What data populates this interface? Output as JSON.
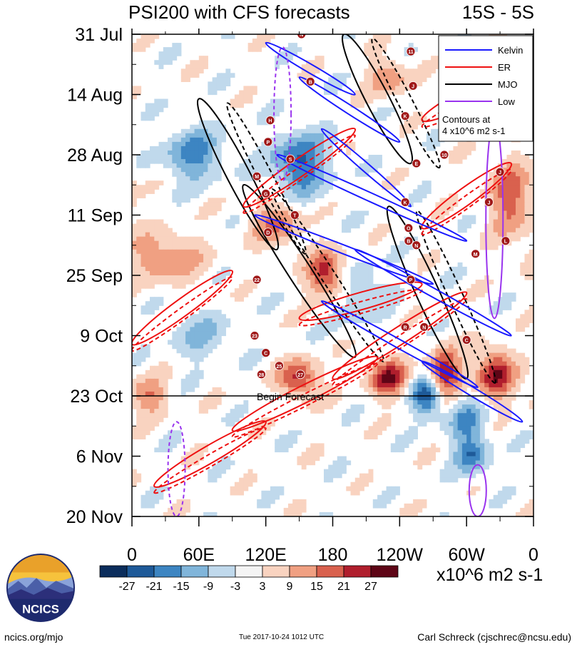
{
  "title_left": "PSI200 with CFS forecasts",
  "title_right": "15S - 5S",
  "logo_text": "NCICS",
  "footer": {
    "left": "ncics.org/mjo",
    "center": "Tue 2017-10-24 1012 UTC",
    "right": "Carl Schreck (cjschrec@ncsu.edu)"
  },
  "units": "x10^6 m2 s-1",
  "annotation": "Begin Forecast",
  "legend": {
    "items": [
      {
        "name": "Kelvin",
        "color": "#1a1aff"
      },
      {
        "name": "ER",
        "color": "#ee1111"
      },
      {
        "name": "MJO",
        "color": "#000000"
      },
      {
        "name": "Low",
        "color": "#9933ee"
      }
    ],
    "note": [
      "Contours at",
      "4 x10^6 m2 s-1"
    ]
  },
  "colorbar": {
    "labels": [
      "-27",
      "-21",
      "-15",
      "-9",
      "-3",
      "3",
      "9",
      "15",
      "21",
      "27"
    ],
    "colors": [
      "#0b2d5c",
      "#1e5a99",
      "#3d85c2",
      "#80b5da",
      "#c0d9ec",
      "#f4f4f4",
      "#f9d3c0",
      "#f0a082",
      "#d9614e",
      "#b01e2d",
      "#5e0516"
    ]
  },
  "chart_data": {
    "type": "heatmap",
    "title": "PSI200 with CFS forecasts",
    "subtitle": "15S - 5S",
    "x_ticks": [
      "0",
      "60E",
      "120E",
      "180",
      "120W",
      "60W",
      "0"
    ],
    "x_range_deg_east": [
      0,
      360
    ],
    "y_ticks": [
      "31 Jul",
      "14 Aug",
      "28 Aug",
      "11 Sep",
      "25 Sep",
      "9 Oct",
      "23 Oct",
      "6 Nov",
      "20 Nov"
    ],
    "time_range": [
      "2017-07-31",
      "2017-11-20"
    ],
    "forecast_start": "23 Oct",
    "contour_interval": "4 x10^6 m2 s-1",
    "colorbar_units": "x10^6 m2 s-1",
    "anomaly_blobs": [
      {
        "lon": 55,
        "day": 28,
        "amp": -18,
        "slon": 18,
        "sday": 4
      },
      {
        "lon": 150,
        "day": 30,
        "amp": -22,
        "slon": 18,
        "sday": 5
      },
      {
        "lon": 175,
        "day": 56,
        "amp": 27,
        "slon": 12,
        "sday": 4
      },
      {
        "lon": 130,
        "day": 44,
        "amp": 15,
        "slon": 16,
        "sday": 4
      },
      {
        "lon": 30,
        "day": 52,
        "amp": 15,
        "slon": 22,
        "sday": 4
      },
      {
        "lon": 150,
        "day": 80,
        "amp": 24,
        "slon": 12,
        "sday": 3
      },
      {
        "lon": 230,
        "day": 80,
        "amp": 27,
        "slon": 12,
        "sday": 3
      },
      {
        "lon": 265,
        "day": 84,
        "amp": -27,
        "slon": 10,
        "sday": 3
      },
      {
        "lon": 280,
        "day": 79,
        "amp": 27,
        "slon": 10,
        "sday": 4
      },
      {
        "lon": 325,
        "day": 79,
        "amp": 27,
        "slon": 12,
        "sday": 4
      },
      {
        "lon": 300,
        "day": 90,
        "amp": -15,
        "slon": 12,
        "sday": 4
      },
      {
        "lon": 305,
        "day": 98,
        "amp": -18,
        "slon": 10,
        "sday": 3
      },
      {
        "lon": 15,
        "day": 84,
        "amp": 15,
        "slon": 12,
        "sday": 3
      },
      {
        "lon": 340,
        "day": 38,
        "amp": 18,
        "slon": 14,
        "sday": 6
      },
      {
        "lon": 230,
        "day": 10,
        "amp": 15,
        "slon": 12,
        "sday": 3
      },
      {
        "lon": 60,
        "day": 70,
        "amp": -10,
        "slon": 18,
        "sday": 4
      },
      {
        "lon": 200,
        "day": 60,
        "amp": -10,
        "slon": 20,
        "sday": 5
      }
    ],
    "kelvin_waves": [
      {
        "start_lon": 120,
        "start_day": 2,
        "end_lon": 200,
        "end_day": 14
      },
      {
        "start_lon": 150,
        "start_day": 10,
        "end_lon": 240,
        "end_day": 25
      },
      {
        "start_lon": 170,
        "start_day": 22,
        "end_lon": 250,
        "end_day": 40
      },
      {
        "start_lon": 110,
        "start_day": 42,
        "end_lon": 270,
        "end_day": 58
      },
      {
        "start_lon": 130,
        "start_day": 28,
        "end_lon": 300,
        "end_day": 48
      },
      {
        "start_lon": 200,
        "start_day": 50,
        "end_lon": 340,
        "end_day": 70
      },
      {
        "start_lon": 170,
        "start_day": 62,
        "end_lon": 310,
        "end_day": 82
      },
      {
        "start_lon": 260,
        "start_day": 76,
        "end_lon": 350,
        "end_day": 90
      }
    ],
    "mjo_lines": [
      {
        "start_lon": 100,
        "start_day": 35,
        "end_lon": 200,
        "end_day": 75
      },
      {
        "start_lon": 190,
        "start_day": 0,
        "end_lon": 250,
        "end_day": 30
      },
      {
        "start_lon": 60,
        "start_day": 15,
        "end_lon": 130,
        "end_day": 50
      },
      {
        "start_lon": 230,
        "start_day": 40,
        "end_lon": 300,
        "end_day": 80
      }
    ],
    "er_lines": [
      {
        "start_lon": 120,
        "start_day": 90,
        "end_lon": 20,
        "end_day": 105
      },
      {
        "start_lon": 220,
        "start_day": 75,
        "end_lon": 90,
        "end_day": 92
      },
      {
        "start_lon": 340,
        "start_day": 30,
        "end_lon": 260,
        "end_day": 45
      },
      {
        "start_lon": 300,
        "start_day": 60,
        "end_lon": 180,
        "end_day": 80
      },
      {
        "start_lon": 90,
        "start_day": 55,
        "end_lon": 0,
        "end_day": 72
      },
      {
        "start_lon": 200,
        "start_day": 22,
        "end_lon": 100,
        "end_day": 40
      },
      {
        "start_lon": 350,
        "start_day": 8,
        "end_lon": 260,
        "end_day": 20
      },
      {
        "start_lon": 260,
        "start_day": 58,
        "end_lon": 150,
        "end_day": 66
      }
    ],
    "low_lines": [
      {
        "lon": 135,
        "start_day": 3,
        "end_day": 34
      },
      {
        "lon": 325,
        "start_day": 20,
        "end_day": 66
      },
      {
        "lon": 40,
        "start_day": 90,
        "end_day": 112
      },
      {
        "lon": 310,
        "start_day": 100,
        "end_day": 112
      }
    ],
    "storm_markers": [
      {
        "lon": 152,
        "day": 0,
        "label": "N"
      },
      {
        "lon": 250,
        "day": 4,
        "label": "11"
      },
      {
        "lon": 160,
        "day": 11,
        "label": "B"
      },
      {
        "lon": 252,
        "day": 12,
        "label": "J"
      },
      {
        "lon": 245,
        "day": 19,
        "label": "K"
      },
      {
        "lon": 124,
        "day": 20,
        "label": "H"
      },
      {
        "lon": 122,
        "day": 25,
        "label": "P"
      },
      {
        "lon": 142,
        "day": 29,
        "label": "S"
      },
      {
        "lon": 280,
        "day": 28,
        "label": "10"
      },
      {
        "lon": 255,
        "day": 30,
        "label": "E"
      },
      {
        "lon": 112,
        "day": 33,
        "label": "M"
      },
      {
        "lon": 120,
        "day": 37,
        "label": "G"
      },
      {
        "lon": 330,
        "day": 32,
        "label": "J"
      },
      {
        "lon": 320,
        "day": 39,
        "label": "J"
      },
      {
        "lon": 245,
        "day": 39,
        "label": "K"
      },
      {
        "lon": 146,
        "day": 42,
        "label": "T"
      },
      {
        "lon": 122,
        "day": 46,
        "label": "D"
      },
      {
        "lon": 248,
        "day": 45,
        "label": "O"
      },
      {
        "lon": 255,
        "day": 49,
        "label": "N"
      },
      {
        "lon": 248,
        "day": 48,
        "label": "B"
      },
      {
        "lon": 335,
        "day": 48,
        "label": "L"
      },
      {
        "lon": 308,
        "day": 51,
        "label": "M"
      },
      {
        "lon": 112,
        "day": 57,
        "label": "22"
      },
      {
        "lon": 250,
        "day": 57,
        "label": "P"
      },
      {
        "lon": 245,
        "day": 68,
        "label": "R"
      },
      {
        "lon": 262,
        "day": 68,
        "label": "N"
      },
      {
        "lon": 110,
        "day": 70,
        "label": "23"
      },
      {
        "lon": 300,
        "day": 71,
        "label": "C"
      },
      {
        "lon": 120,
        "day": 74,
        "label": "C"
      },
      {
        "lon": 132,
        "day": 77,
        "label": "25"
      },
      {
        "lon": 116,
        "day": 79,
        "label": "28"
      },
      {
        "lon": 151,
        "day": 79,
        "label": "27"
      }
    ]
  }
}
